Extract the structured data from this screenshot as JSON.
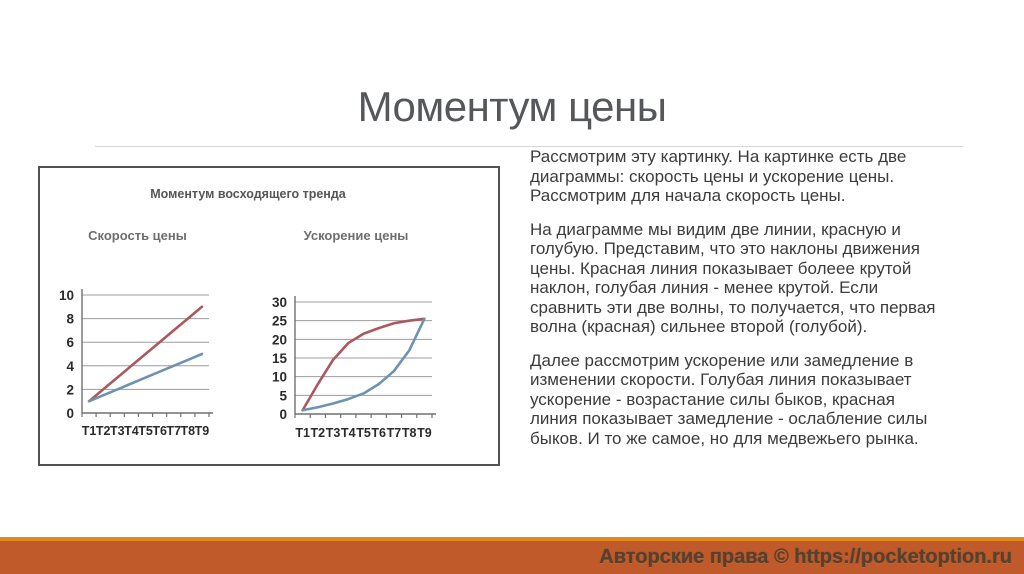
{
  "slide": {
    "title": "Моментум цены",
    "paragraphs": [
      "Рассмотрим эту картинку. На картинке есть две диаграммы: скорость цены и ускорение цены. Рассмотрим для начала скорость цены.",
      "На диаграмме мы видим две линии, красную и голубую. Представим, что это наклоны движения цены. Красная линия показывает болеее крутой наклон, голубая линия - менее крутой. Если сравнить эти две волны, то получается, что первая волна (красная) сильнее второй (голубой).",
      "Далее рассмотрим ускорение или замедление в изменении скорости. Голубая линия показывает ускорение - возрастание силы быков, красная линия показывает замедление - ослабление силы быков. И то же самое, но для медвежьего рынка."
    ]
  },
  "figure": {
    "title": "Моментум восходящего тренда"
  },
  "chart_data": [
    {
      "type": "line",
      "title": "Скорость цены",
      "categories": [
        "T1",
        "T2",
        "T3",
        "T4",
        "T5",
        "T6",
        "T7",
        "T8",
        "T9"
      ],
      "series": [
        {
          "name": "красная линия (крутой наклон)",
          "color": "#ab585e",
          "values": [
            1,
            2,
            3,
            4,
            5,
            6,
            7,
            8,
            9
          ]
        },
        {
          "name": "голубая линия (менее крутой наклон)",
          "color": "#6e93b1",
          "values": [
            1,
            1.5,
            2,
            2.5,
            3,
            3.5,
            4,
            4.5,
            5
          ]
        }
      ],
      "ylim": [
        0,
        10
      ],
      "yticks": [
        0,
        2,
        4,
        6,
        8,
        10
      ],
      "grid": true,
      "legend": "none"
    },
    {
      "type": "line",
      "title": "Ускорение цены",
      "categories": [
        "T1",
        "T2",
        "T3",
        "T4",
        "T5",
        "T6",
        "T7",
        "T8",
        "T9"
      ],
      "series": [
        {
          "name": "красная линия (замедление)",
          "color": "#ab585e",
          "values": [
            1,
            8,
            14.5,
            19,
            21.5,
            23,
            24.3,
            25,
            25.5
          ]
        },
        {
          "name": "голубая линия (ускорение)",
          "color": "#6e93b1",
          "values": [
            1,
            1.8,
            2.8,
            4,
            5.5,
            8,
            11.5,
            17,
            25.5
          ]
        }
      ],
      "ylim": [
        0,
        30
      ],
      "yticks": [
        0,
        5,
        10,
        15,
        20,
        25,
        30
      ],
      "grid": true,
      "legend": "none"
    }
  ],
  "footer": {
    "copyright": "Авторские права © https://pocketoption.ru"
  },
  "colors": {
    "stripe-color": "#e1871c",
    "bar-color": "#c05a2a",
    "title-color": "#55575a",
    "gridline-color": "#9c9c9c",
    "axis-color": "#707070"
  }
}
